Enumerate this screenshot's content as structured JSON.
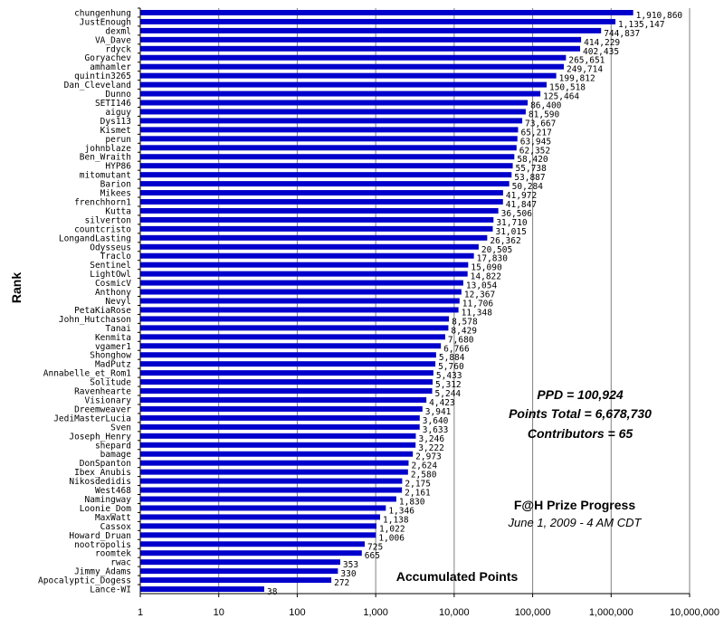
{
  "chart_data": {
    "type": "bar",
    "orientation": "horizontal",
    "xlabel": "Accumulated Points",
    "ylabel": "Rank",
    "x_scale": "log",
    "xlim": [
      1,
      10000000
    ],
    "x_ticks": [
      "1",
      "10",
      "100",
      "1,000",
      "10,000",
      "100,000",
      "1,000,000",
      "10,000,000"
    ],
    "grid": "vertical",
    "bar_color": "#0000CC",
    "categories": [
      "chungenhung",
      "JustEnough",
      "dexml",
      "VA_Dave",
      "rdyck",
      "Goryachev",
      "amhamler",
      "quintin3265",
      "Dan_Cleveland",
      "Dunno",
      "SETI146",
      "aiguy",
      "Dys113",
      "Kismet",
      "perun",
      "johnblaze",
      "Ben_Wraith",
      "HYP86",
      "mitomutant",
      "Barion",
      "Mikees",
      "frenchhorn1",
      "Kutta",
      "silverton",
      "countcristo",
      "LongandLasting",
      "Odysseus",
      "Traclo",
      "Sentinel",
      "LightOwl",
      "CosmicV",
      "Anthony",
      "Nevyl",
      "PetaKiaRose",
      "John_Hutchason",
      "Tanai",
      "Kenmita",
      "vgamer1",
      "Shonghow",
      "MadPutz",
      "Annabelle_et_Rom1",
      "Solitude",
      "Ravenhearte",
      "Visionary",
      "Dreemweaver",
      "JediMasterLucia",
      "Sven",
      "Joseph_Henry",
      "shepard",
      "bamage",
      "DonSpanton",
      "Ibex_Anubis",
      "Nikosdedidis",
      "West468",
      "Namingway",
      "Loonie_Dom",
      "MaxWatt",
      "Cassox",
      "Howard_Druan",
      "nootropolis",
      "roomtek",
      "rwac",
      "Jimmy_Adams",
      "Apocalyptic_Dogess",
      "Lance-WI"
    ],
    "values": [
      1910860,
      1135147,
      744837,
      414229,
      402435,
      265651,
      249714,
      199812,
      150518,
      125464,
      86400,
      81590,
      73667,
      65217,
      63945,
      62352,
      58420,
      55738,
      53887,
      50284,
      41972,
      41847,
      36506,
      31710,
      31015,
      26362,
      20505,
      17830,
      15090,
      14822,
      13054,
      12367,
      11706,
      11348,
      8578,
      8429,
      7680,
      6766,
      5884,
      5760,
      5433,
      5312,
      5244,
      4423,
      3941,
      3640,
      3633,
      3246,
      3222,
      2973,
      2624,
      2580,
      2175,
      2161,
      1830,
      1346,
      1138,
      1022,
      1006,
      725,
      665,
      353,
      330,
      272,
      38
    ],
    "value_labels": [
      "1,910,860",
      "1,135,147",
      "744,837",
      "414,229",
      "402,435",
      "265,651",
      "249,714",
      "199,812",
      "150,518",
      "125,464",
      "86,400",
      "81,590",
      "73,667",
      "65,217",
      "63,945",
      "62,352",
      "58,420",
      "55,738",
      "53,887",
      "50,284",
      "41,972",
      "41,847",
      "36,506",
      "31,710",
      "31,015",
      "26,362",
      "20,505",
      "17,830",
      "15,090",
      "14,822",
      "13,054",
      "12,367",
      "11,706",
      "11,348",
      "8,578",
      "8,429",
      "7,680",
      "6,766",
      "5,884",
      "5,760",
      "5,433",
      "5,312",
      "5,244",
      "4,423",
      "3,941",
      "3,640",
      "3,633",
      "3,246",
      "3,222",
      "2,973",
      "2,624",
      "2,580",
      "2,175",
      "2,161",
      "1,830",
      "1,346",
      "1,138",
      "1,022",
      "1,006",
      "725",
      "665",
      "353",
      "330",
      "272",
      "38"
    ],
    "annotations": {
      "ppd": "PPD = 100,924",
      "points_total": "Points Total = 6,678,730",
      "contributors": "Contributors = 65",
      "title": "F@H Prize Progress",
      "date": "June 1, 2009 - 4 AM CDT"
    }
  }
}
